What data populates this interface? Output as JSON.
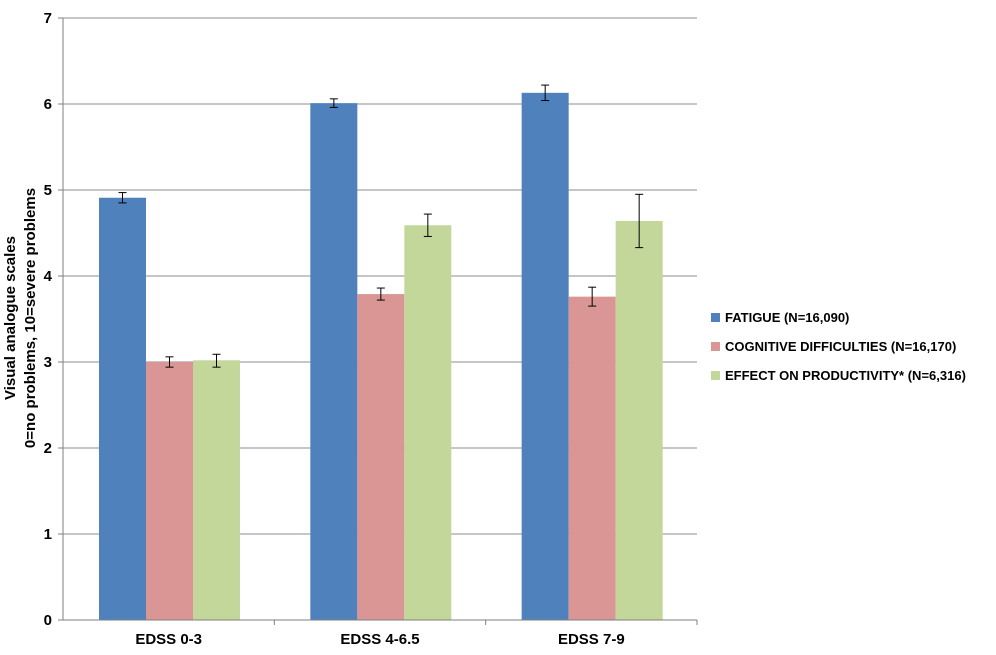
{
  "chart_data": {
    "type": "bar",
    "title": "",
    "xlabel": "",
    "ylabel_lines": [
      "Visual analogue scales",
      "0=no problems, 10=severe problems"
    ],
    "ylim": [
      0,
      7
    ],
    "yticks": [
      "0",
      "1",
      "2",
      "3",
      "4",
      "5",
      "6",
      "7"
    ],
    "grid": "horizontal",
    "legend_position": "right",
    "categories": [
      "EDSS 0-3",
      "EDSS 4-6.5",
      "EDSS 7-9"
    ],
    "series": [
      {
        "name": "FATIGUE (N=16,090)",
        "color": "#4F81BD",
        "values": [
          4.91,
          6.01,
          6.13
        ],
        "err_low": [
          4.85,
          5.96,
          6.04
        ],
        "err_high": [
          4.97,
          6.06,
          6.22
        ]
      },
      {
        "name": "COGNITIVE DIFFICULTIES (N=16,170)",
        "color": "#DA9694",
        "values": [
          3.0,
          3.79,
          3.76
        ],
        "err_low": [
          2.94,
          3.72,
          3.65
        ],
        "err_high": [
          3.06,
          3.86,
          3.87
        ]
      },
      {
        "name": "EFFECT ON PRODUCTIVITY* (N=6,316)",
        "color": "#C4D79B",
        "values": [
          3.02,
          4.59,
          4.64
        ],
        "err_low": [
          2.94,
          4.46,
          4.33
        ],
        "err_high": [
          3.09,
          4.72,
          4.95
        ]
      }
    ]
  }
}
